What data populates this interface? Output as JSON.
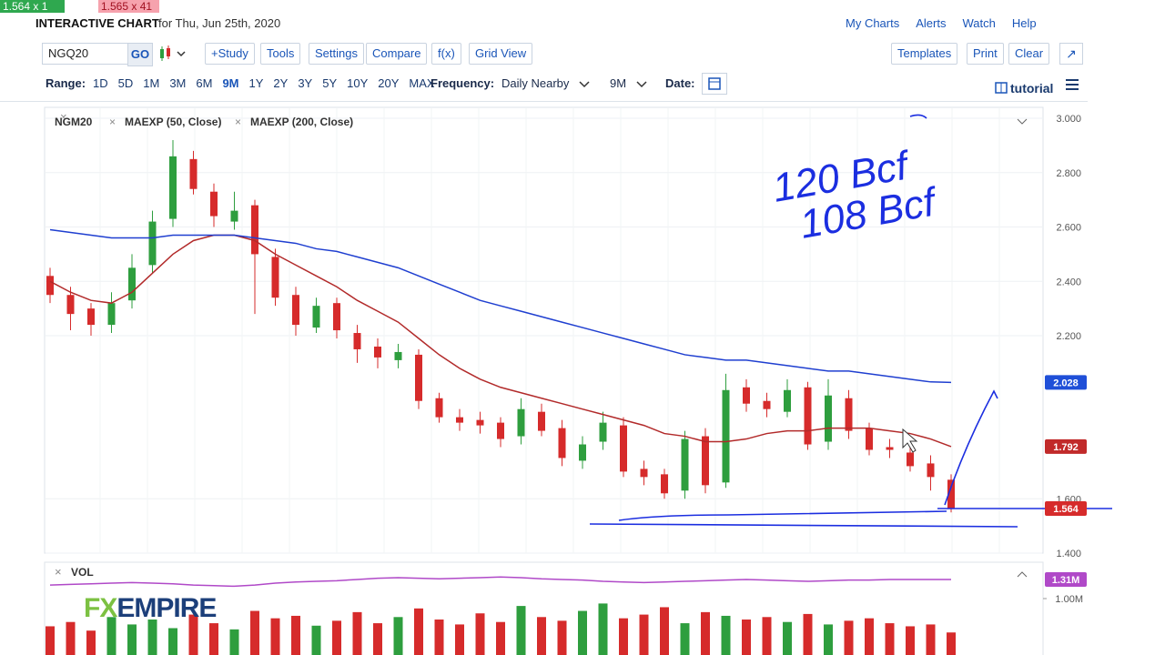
{
  "quote": {
    "bid": "1.564 x 1",
    "ask": "1.565 x 41"
  },
  "header": {
    "title": "INTERACTIVE CHART",
    "date": "for Thu, Jun 25th, 2020",
    "links": [
      "My Charts",
      "Alerts",
      "Watch",
      "Help"
    ]
  },
  "toolbar": {
    "symbol": "NGQ20",
    "go": "GO",
    "buttons": [
      "+Study",
      "Tools",
      "Settings",
      "Compare",
      "f(x)",
      "Grid View"
    ],
    "right_buttons": [
      "Templates",
      "Print",
      "Clear"
    ]
  },
  "range_bar": {
    "label": "Range:",
    "ranges": [
      "1D",
      "5D",
      "1M",
      "3M",
      "6M",
      "9M",
      "1Y",
      "2Y",
      "3Y",
      "5Y",
      "10Y",
      "20Y",
      "MAX"
    ],
    "active_range": 5,
    "frequency_label": "Frequency:",
    "frequency": "Daily Nearby",
    "period": "9M",
    "date_label": "Date:",
    "tutorial": "tutorial"
  },
  "chart_data": {
    "type": "candlestick",
    "symbol": "NGM20",
    "open": [
      2.42,
      2.35,
      2.3,
      2.24,
      2.33,
      2.46,
      2.63,
      2.85,
      2.73,
      2.62,
      2.68,
      2.49,
      2.35,
      2.23,
      2.32,
      2.21,
      2.16,
      2.11,
      2.13,
      1.97,
      1.9,
      1.89,
      1.88,
      1.83,
      1.92,
      1.86,
      1.74,
      1.81,
      1.87,
      1.71,
      1.69,
      1.63,
      1.83,
      1.66,
      2.01,
      1.96,
      1.92,
      2.01,
      1.81,
      1.97,
      1.86,
      1.79,
      1.77,
      1.73,
      1.67
    ],
    "high": [
      2.45,
      2.38,
      2.32,
      2.36,
      2.5,
      2.66,
      2.92,
      2.88,
      2.76,
      2.73,
      2.7,
      2.52,
      2.38,
      2.34,
      2.34,
      2.24,
      2.19,
      2.17,
      2.15,
      1.99,
      1.93,
      1.92,
      1.9,
      1.97,
      1.95,
      1.89,
      1.83,
      1.92,
      1.9,
      1.74,
      1.71,
      1.85,
      1.86,
      2.06,
      2.04,
      1.99,
      2.04,
      2.03,
      2.04,
      2.0,
      1.88,
      1.82,
      1.8,
      1.76,
      1.69
    ],
    "low": [
      2.32,
      2.22,
      2.2,
      2.21,
      2.3,
      2.43,
      2.6,
      2.72,
      2.6,
      2.59,
      2.28,
      2.31,
      2.2,
      2.21,
      2.19,
      2.1,
      2.08,
      2.08,
      1.93,
      1.88,
      1.85,
      1.84,
      1.79,
      1.8,
      1.83,
      1.72,
      1.71,
      1.78,
      1.68,
      1.65,
      1.6,
      1.6,
      1.62,
      1.64,
      1.92,
      1.9,
      1.9,
      1.78,
      1.78,
      1.82,
      1.76,
      1.75,
      1.7,
      1.63,
      1.55
    ],
    "close": [
      2.35,
      2.28,
      2.24,
      2.32,
      2.45,
      2.62,
      2.86,
      2.74,
      2.64,
      2.66,
      2.5,
      2.34,
      2.24,
      2.31,
      2.22,
      2.15,
      2.12,
      2.14,
      1.96,
      1.9,
      1.88,
      1.87,
      1.82,
      1.93,
      1.85,
      1.75,
      1.8,
      1.88,
      1.7,
      1.68,
      1.62,
      1.82,
      1.65,
      2.0,
      1.95,
      1.93,
      2.0,
      1.8,
      1.98,
      1.85,
      1.78,
      1.78,
      1.72,
      1.68,
      1.564
    ],
    "up_color": "#2e9e3e",
    "down_color": "#d62b2b",
    "series": [
      {
        "name": "MAEXP (50, Close)",
        "color": "#b22a2a",
        "values": [
          2.4,
          2.36,
          2.33,
          2.32,
          2.36,
          2.43,
          2.5,
          2.55,
          2.57,
          2.57,
          2.55,
          2.5,
          2.46,
          2.42,
          2.38,
          2.33,
          2.29,
          2.25,
          2.19,
          2.13,
          2.08,
          2.04,
          2.01,
          1.99,
          1.97,
          1.95,
          1.93,
          1.91,
          1.89,
          1.87,
          1.84,
          1.83,
          1.81,
          1.81,
          1.82,
          1.84,
          1.85,
          1.85,
          1.86,
          1.86,
          1.86,
          1.85,
          1.84,
          1.82,
          1.792
        ]
      },
      {
        "name": "MAEXP (200, Close)",
        "color": "#1f3fd0",
        "values": [
          2.59,
          2.58,
          2.57,
          2.56,
          2.56,
          2.56,
          2.57,
          2.57,
          2.57,
          2.57,
          2.56,
          2.55,
          2.54,
          2.52,
          2.51,
          2.49,
          2.47,
          2.45,
          2.42,
          2.39,
          2.36,
          2.33,
          2.31,
          2.29,
          2.27,
          2.25,
          2.23,
          2.21,
          2.19,
          2.17,
          2.15,
          2.13,
          2.12,
          2.11,
          2.11,
          2.1,
          2.09,
          2.08,
          2.07,
          2.07,
          2.06,
          2.05,
          2.04,
          2.03,
          2.028
        ]
      }
    ],
    "ylim": [
      1.4,
      3.037
    ],
    "yticks": [
      {
        "value": 1.4,
        "label": "1.400"
      },
      {
        "value": 1.6,
        "label": "1.600"
      },
      {
        "value": 2.2,
        "label": "2.200"
      },
      {
        "value": 2.4,
        "label": "2.400"
      },
      {
        "value": 2.6,
        "label": "2.600"
      },
      {
        "value": 2.8,
        "label": "2.800"
      },
      {
        "value": 3.0,
        "label": "3.000"
      }
    ],
    "grid": true,
    "volume": {
      "name": "VOL",
      "color": "#b049c8",
      "values": [
        0.55,
        0.62,
        0.48,
        0.7,
        0.58,
        0.66,
        0.52,
        0.74,
        0.6,
        0.5,
        0.8,
        0.68,
        0.72,
        0.56,
        0.64,
        0.78,
        0.6,
        0.7,
        0.84,
        0.66,
        0.58,
        0.76,
        0.62,
        0.88,
        0.7,
        0.64,
        0.8,
        0.92,
        0.68,
        0.74,
        0.86,
        0.6,
        0.78,
        0.72,
        0.66,
        0.7,
        0.62,
        0.75,
        0.58,
        0.64,
        0.68,
        0.6,
        0.55,
        0.58,
        0.45
      ],
      "avg": [
        1.22,
        1.23,
        1.24,
        1.25,
        1.26,
        1.25,
        1.24,
        1.22,
        1.21,
        1.2,
        1.22,
        1.25,
        1.27,
        1.28,
        1.29,
        1.31,
        1.33,
        1.34,
        1.33,
        1.32,
        1.33,
        1.34,
        1.35,
        1.34,
        1.32,
        1.31,
        1.3,
        1.28,
        1.27,
        1.26,
        1.27,
        1.28,
        1.29,
        1.3,
        1.31,
        1.3,
        1.29,
        1.28,
        1.29,
        1.3,
        1.3,
        1.31,
        1.31,
        1.31,
        1.31
      ],
      "ylim": [
        0,
        1.45
      ],
      "yticks": [
        {
          "value": 1.31,
          "label": "1.31M"
        },
        {
          "value": 1,
          "label": "1.00M"
        }
      ]
    }
  },
  "watermark": {
    "fx": "FX",
    "rest": "EMPIRE"
  },
  "annotations": [
    "120 Bcf",
    "108 Bcf"
  ]
}
